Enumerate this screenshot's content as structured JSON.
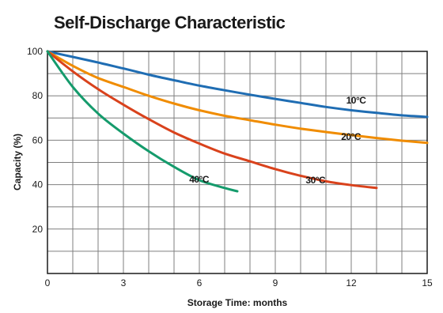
{
  "chart_data": {
    "type": "line",
    "title": "Self-Discharge Characteristic",
    "xlabel": "Storage Time: months",
    "ylabel": "Capacity (%)",
    "xlim": [
      0,
      15
    ],
    "ylim": [
      0,
      100
    ],
    "x_ticks": [
      "0",
      "3",
      "6",
      "9",
      "12",
      "15"
    ],
    "y_ticks": [
      "20",
      "40",
      "60",
      "80",
      "100"
    ],
    "grid": true,
    "series": [
      {
        "name": "10°C",
        "color": "#1f6db3",
        "points": [
          [
            0,
            100
          ],
          [
            1,
            97.5
          ],
          [
            2,
            95
          ],
          [
            3,
            92.3
          ],
          [
            4,
            89.5
          ],
          [
            5,
            87
          ],
          [
            6,
            84.6
          ],
          [
            7,
            82.5
          ],
          [
            8,
            80.5
          ],
          [
            9,
            78.6
          ],
          [
            10,
            76.8
          ],
          [
            11,
            75
          ],
          [
            12,
            73.5
          ],
          [
            13,
            72.3
          ],
          [
            14,
            71.2
          ],
          [
            15,
            70.5
          ]
        ]
      },
      {
        "name": "20°C",
        "color": "#f08c00",
        "points": [
          [
            0,
            100
          ],
          [
            1,
            93.5
          ],
          [
            2,
            88
          ],
          [
            3,
            84
          ],
          [
            4,
            80
          ],
          [
            5,
            76.5
          ],
          [
            6,
            73.5
          ],
          [
            7,
            71
          ],
          [
            8,
            69
          ],
          [
            9,
            67
          ],
          [
            10,
            65.2
          ],
          [
            11,
            63.7
          ],
          [
            12,
            62.3
          ],
          [
            13,
            61
          ],
          [
            14,
            59.8
          ],
          [
            15,
            58.8
          ]
        ]
      },
      {
        "name": "30°C",
        "color": "#d9421c",
        "points": [
          [
            0,
            100
          ],
          [
            1,
            91
          ],
          [
            2,
            83
          ],
          [
            3,
            76
          ],
          [
            4,
            69.5
          ],
          [
            5,
            63.5
          ],
          [
            6,
            58.5
          ],
          [
            7,
            54
          ],
          [
            8,
            50.5
          ],
          [
            9,
            47
          ],
          [
            10,
            44
          ],
          [
            11,
            41.5
          ],
          [
            12,
            39.8
          ],
          [
            13,
            38.5
          ]
        ]
      },
      {
        "name": "40°C",
        "color": "#159b6c",
        "points": [
          [
            0,
            100
          ],
          [
            1,
            84
          ],
          [
            2,
            72
          ],
          [
            3,
            63
          ],
          [
            4,
            55
          ],
          [
            5,
            48
          ],
          [
            6,
            42
          ],
          [
            7,
            38.5
          ],
          [
            7.5,
            37
          ]
        ]
      }
    ],
    "annotations": [
      {
        "text": "10°C",
        "series": "10°C",
        "x": 11.8,
        "y": 76.5
      },
      {
        "text": "20°C",
        "series": "20°C",
        "x": 11.6,
        "y": 60.2
      },
      {
        "text": "30°C",
        "series": "30°C",
        "x": 10.2,
        "y": 40.5
      },
      {
        "text": "40°C",
        "series": "40°C",
        "x": 5.6,
        "y": 41
      }
    ]
  }
}
